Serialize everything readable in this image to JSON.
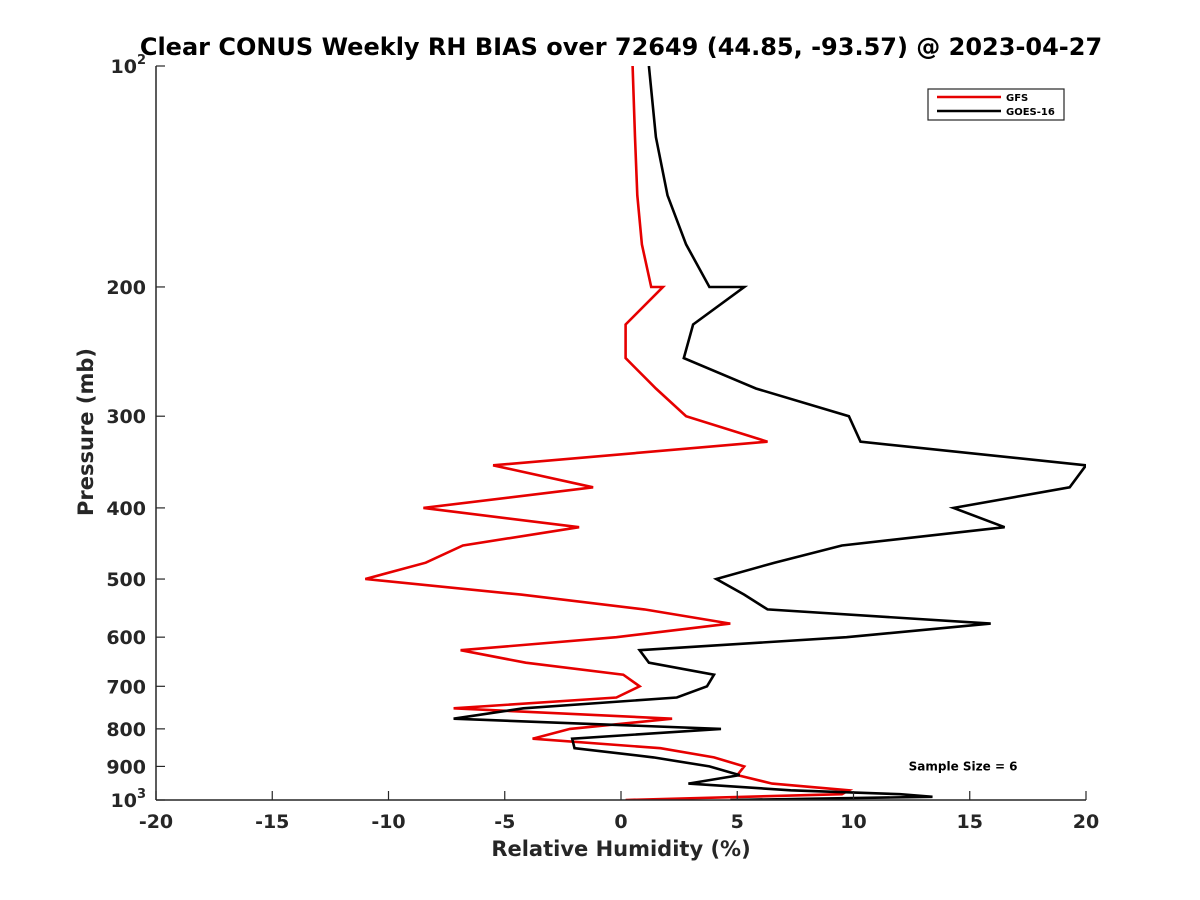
{
  "chart_data": {
    "type": "line",
    "title": "Clear CONUS Weekly RH BIAS over 72649 (44.85, -93.57) @ 2023-04-27",
    "xlabel": "Relative Humidity (%)",
    "ylabel": "Pressure (mb)",
    "xlim": [
      -20,
      20
    ],
    "ylim": [
      100,
      1000
    ],
    "y_scale": "log",
    "y_reversed": true,
    "grid": false,
    "legend_position": "top-right",
    "x_ticks": [
      {
        "value": -20,
        "label": "-20"
      },
      {
        "value": -15,
        "label": "-15"
      },
      {
        "value": -10,
        "label": "-10"
      },
      {
        "value": -5,
        "label": "-5"
      },
      {
        "value": 0,
        "label": "0"
      },
      {
        "value": 5,
        "label": "5"
      },
      {
        "value": 10,
        "label": "10"
      },
      {
        "value": 15,
        "label": "15"
      },
      {
        "value": 20,
        "label": "20"
      }
    ],
    "y_ticks": [
      {
        "value": 100,
        "label": "",
        "base": "10",
        "exp": "2"
      },
      {
        "value": 200,
        "label": "200"
      },
      {
        "value": 300,
        "label": "300"
      },
      {
        "value": 400,
        "label": "400"
      },
      {
        "value": 500,
        "label": "500"
      },
      {
        "value": 600,
        "label": "600"
      },
      {
        "value": 700,
        "label": "700"
      },
      {
        "value": 800,
        "label": "800"
      },
      {
        "value": 900,
        "label": "900"
      },
      {
        "value": 1000,
        "label": "",
        "base": "10",
        "exp": "3"
      }
    ],
    "series": [
      {
        "name": "GFS",
        "color": "#e60000",
        "points": [
          [
            0.5,
            100
          ],
          [
            0.6,
            125
          ],
          [
            0.7,
            150
          ],
          [
            0.9,
            175
          ],
          [
            1.3,
            200
          ],
          [
            1.8,
            200
          ],
          [
            0.2,
            225
          ],
          [
            0.2,
            250
          ],
          [
            1.5,
            275
          ],
          [
            2.8,
            300
          ],
          [
            6.3,
            325
          ],
          [
            -5.5,
            350
          ],
          [
            -1.2,
            375
          ],
          [
            -8.5,
            400
          ],
          [
            -1.8,
            425
          ],
          [
            -6.8,
            450
          ],
          [
            -8.4,
            475
          ],
          [
            -11,
            500
          ],
          [
            -4.3,
            525
          ],
          [
            1.0,
            550
          ],
          [
            4.7,
            575
          ],
          [
            -0.2,
            600
          ],
          [
            -6.9,
            625
          ],
          [
            -4.1,
            650
          ],
          [
            0.1,
            675
          ],
          [
            0.8,
            700
          ],
          [
            -0.2,
            725
          ],
          [
            -7.2,
            750
          ],
          [
            2.2,
            775
          ],
          [
            -2.2,
            800
          ],
          [
            -3.8,
            825
          ],
          [
            1.7,
            850
          ],
          [
            4.0,
            875
          ],
          [
            5.3,
            900
          ],
          [
            5.0,
            925
          ],
          [
            6.5,
            950
          ],
          [
            9.8,
            970
          ],
          [
            9.5,
            982
          ],
          [
            0.2,
            1000
          ]
        ]
      },
      {
        "name": "GOES-16",
        "color": "#000000",
        "points": [
          [
            1.2,
            100
          ],
          [
            1.5,
            125
          ],
          [
            2.0,
            150
          ],
          [
            2.8,
            175
          ],
          [
            3.8,
            200
          ],
          [
            5.3,
            200
          ],
          [
            3.1,
            225
          ],
          [
            2.7,
            250
          ],
          [
            5.8,
            275
          ],
          [
            9.8,
            300
          ],
          [
            10.3,
            325
          ],
          [
            20,
            350
          ],
          [
            19.3,
            375
          ],
          [
            14.3,
            400
          ],
          [
            16.5,
            425
          ],
          [
            9.5,
            450
          ],
          [
            6.6,
            475
          ],
          [
            4.1,
            500
          ],
          [
            5.3,
            525
          ],
          [
            6.3,
            550
          ],
          [
            15.9,
            575
          ],
          [
            9.7,
            600
          ],
          [
            0.8,
            625
          ],
          [
            1.2,
            650
          ],
          [
            4.0,
            675
          ],
          [
            3.7,
            700
          ],
          [
            2.4,
            725
          ],
          [
            -4.2,
            750
          ],
          [
            -7.2,
            775
          ],
          [
            4.3,
            800
          ],
          [
            -2.1,
            825
          ],
          [
            -2.0,
            850
          ],
          [
            1.4,
            875
          ],
          [
            3.8,
            900
          ],
          [
            5.1,
            925
          ],
          [
            2.9,
            950
          ],
          [
            7.3,
            970
          ],
          [
            12.0,
            982
          ],
          [
            13.4,
            990
          ],
          [
            4.7,
            1000
          ]
        ]
      }
    ],
    "annotations": [
      {
        "text": "Sample Size = 6",
        "x": 12.5,
        "y": 900
      }
    ]
  }
}
